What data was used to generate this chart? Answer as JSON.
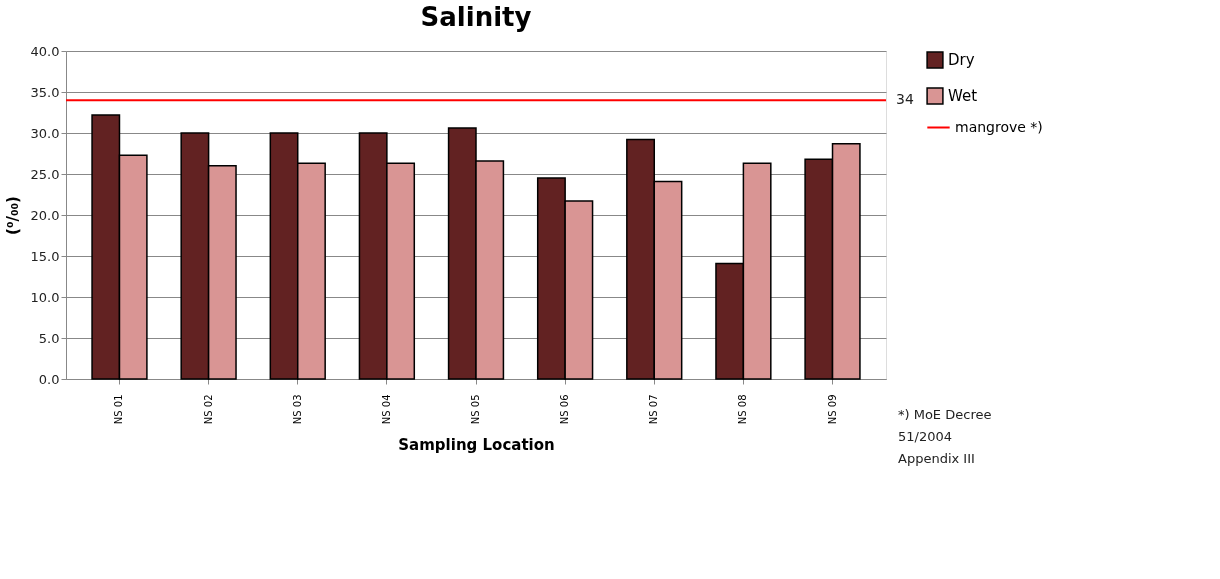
{
  "chart_data": {
    "type": "bar",
    "title": "Salinity",
    "xlabel": "Sampling Location",
    "ylabel": "(⁰/₀₀)",
    "categories": [
      "NS 01",
      "NS 02",
      "NS 03",
      "NS 04",
      "NS 05",
      "NS 06",
      "NS 07",
      "NS 08",
      "NS 09"
    ],
    "series": [
      {
        "name": "Dry",
        "color": "#622222",
        "values": [
          32.2,
          30.0,
          30.0,
          30.0,
          30.6,
          24.5,
          29.2,
          14.1,
          26.8
        ]
      },
      {
        "name": "Wet",
        "color": "#d99594",
        "values": [
          27.3,
          26.0,
          26.3,
          26.3,
          26.6,
          21.7,
          24.1,
          26.3,
          28.7
        ]
      }
    ],
    "ylim": [
      0,
      40
    ],
    "yticks": [
      {
        "value": 0,
        "label": "0.0"
      },
      {
        "value": 5,
        "label": "5.0"
      },
      {
        "value": 10,
        "label": "10.0"
      },
      {
        "value": 15,
        "label": "15.0"
      },
      {
        "value": 20,
        "label": "20.0"
      },
      {
        "value": 25,
        "label": "25.0"
      },
      {
        "value": 30,
        "label": "30.0"
      },
      {
        "value": 35,
        "label": "35.0"
      },
      {
        "value": 40,
        "label": "40.0"
      }
    ],
    "ref_lines": [
      {
        "axis": "y",
        "value": 34,
        "label": "mangrove *)",
        "color": "#ff0000"
      }
    ],
    "annotations": [
      "34",
      "*) MoE Decree\n51/2004\nAppendix III"
    ],
    "grid": "y",
    "legend": "right"
  }
}
